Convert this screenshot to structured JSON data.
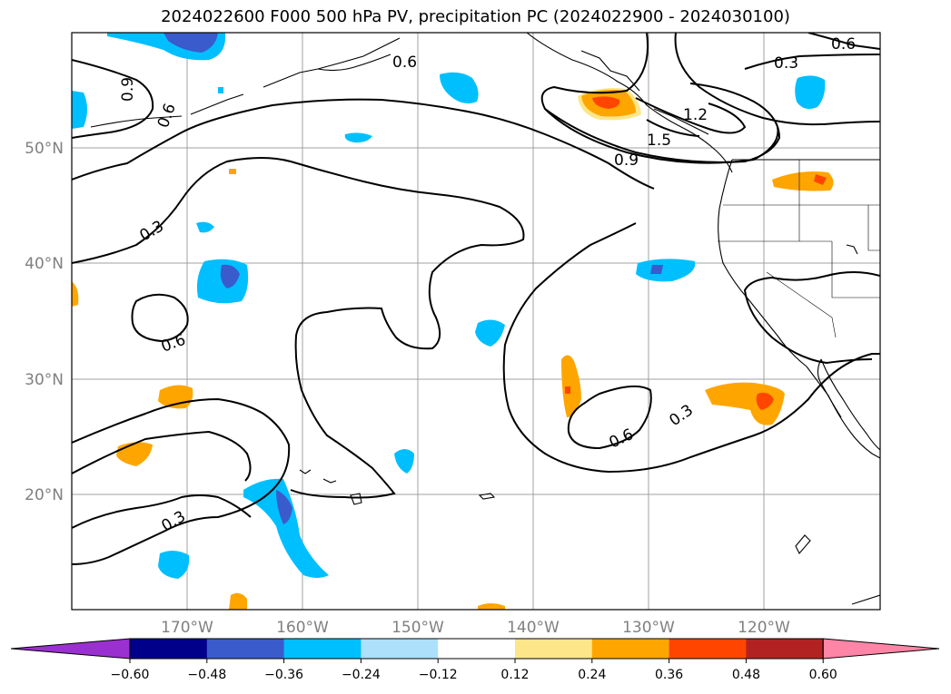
{
  "title": "2024022600 F000 500 hPa PV, precipitation PC (2024022900 - 2024030100)",
  "map": {
    "lon_labels": [
      "170°W",
      "160°W",
      "150°W",
      "140°W",
      "130°W",
      "120°W"
    ],
    "lat_labels": [
      "50°N",
      "40°N",
      "30°N",
      "20°N"
    ],
    "contour_labels": [
      "0.3",
      "0.6",
      "0.9",
      "1.2",
      "1.5"
    ],
    "colors": {
      "contour": "#000000",
      "grid": "#a0a0a0",
      "coast": "#000000"
    }
  },
  "colorbar": {
    "ticks": [
      "−0.60",
      "−0.48",
      "−0.36",
      "−0.24",
      "−0.12",
      "0.12",
      "0.24",
      "0.36",
      "0.48",
      "0.60"
    ],
    "colors": [
      "#9b30d0",
      "#00008b",
      "#3a5bcc",
      "#00bfff",
      "#ade0fa",
      "#ffffff",
      "#fde68a",
      "#ffa500",
      "#ff4500",
      "#b22222",
      "#ff85a6"
    ]
  }
}
